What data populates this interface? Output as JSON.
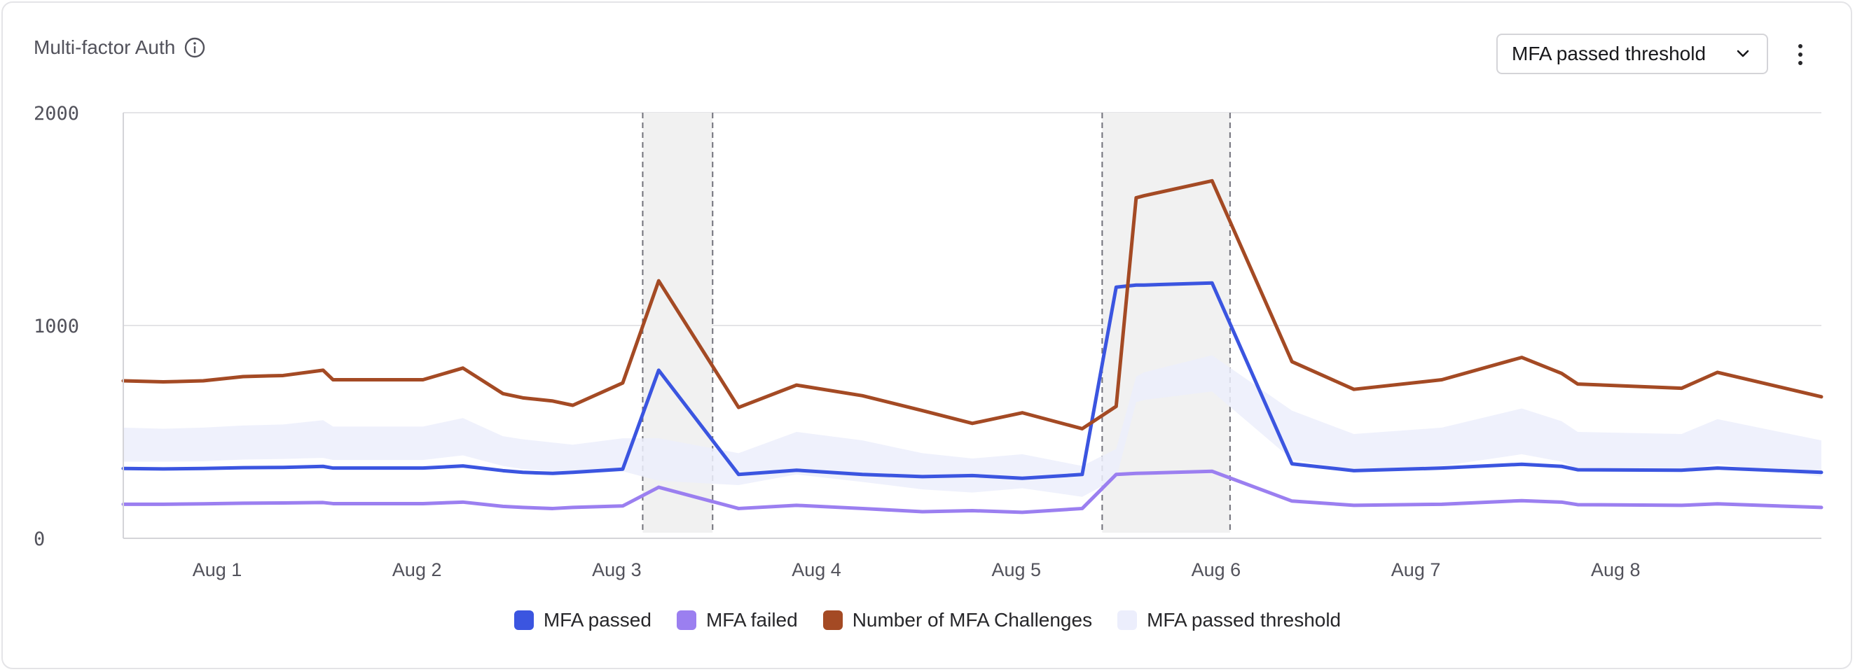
{
  "header": {
    "title": "Multi-factor Auth",
    "info_icon": "info-icon",
    "dropdown_selected": "MFA passed threshold",
    "more_icon": "more-vertical-icon"
  },
  "colors": {
    "passed": "#3b55e0",
    "failed": "#9b7ff0",
    "challenges": "#a44a24",
    "threshold": "#eceefc",
    "highlight": "#f1f1f1",
    "grid": "#e4e4e7"
  },
  "chart_data": {
    "type": "line",
    "xlim": [
      0,
      8.5
    ],
    "ylim": [
      0,
      2000
    ],
    "yticks": [
      "2000",
      "1000",
      "0"
    ],
    "ytick_values": [
      2000,
      1000,
      0
    ],
    "xticks": [
      {
        "label": "Aug 1",
        "x": 0.47
      },
      {
        "label": "Aug 2",
        "x": 1.47
      },
      {
        "label": "Aug 3",
        "x": 2.47
      },
      {
        "label": "Aug 4",
        "x": 3.47
      },
      {
        "label": "Aug 5",
        "x": 4.47
      },
      {
        "label": "Aug 6",
        "x": 5.47
      },
      {
        "label": "Aug 7",
        "x": 6.47
      },
      {
        "label": "Aug 8",
        "x": 7.47
      }
    ],
    "highlights": [
      {
        "x_start": 2.6,
        "x_end": 2.95
      },
      {
        "x_start": 4.9,
        "x_end": 5.54
      }
    ],
    "series": [
      {
        "name": "MFA passed",
        "x": [
          0,
          0.2,
          0.4,
          0.6,
          0.8,
          1.0,
          1.05,
          1.3,
          1.5,
          1.7,
          1.9,
          2.0,
          2.15,
          2.25,
          2.5,
          2.68,
          3.08,
          3.37,
          3.7,
          4.0,
          4.25,
          4.5,
          4.8,
          4.97,
          5.07,
          5.11,
          5.45,
          5.85,
          6.16,
          6.6,
          7.0,
          7.2,
          7.28,
          7.8,
          7.98,
          8.5
        ],
        "y": [
          328,
          326,
          328,
          332,
          333,
          338,
          330,
          330,
          330,
          340,
          318,
          310,
          305,
          310,
          325,
          790,
          300,
          320,
          300,
          290,
          295,
          282,
          300,
          1180,
          1190,
          1190,
          1200,
          350,
          318,
          330,
          348,
          338,
          322,
          320,
          330,
          310
        ]
      },
      {
        "name": "MFA failed",
        "x": [
          0,
          0.2,
          0.4,
          0.6,
          0.8,
          1.0,
          1.05,
          1.3,
          1.5,
          1.7,
          1.9,
          2.0,
          2.15,
          2.25,
          2.5,
          2.68,
          3.08,
          3.37,
          3.7,
          4.0,
          4.25,
          4.5,
          4.8,
          4.97,
          5.07,
          5.11,
          5.45,
          5.85,
          6.16,
          6.6,
          7.0,
          7.2,
          7.28,
          7.8,
          7.98,
          8.5
        ],
        "y": [
          160,
          160,
          162,
          165,
          166,
          168,
          163,
          163,
          163,
          170,
          150,
          145,
          140,
          145,
          152,
          240,
          140,
          155,
          140,
          125,
          130,
          122,
          140,
          300,
          305,
          306,
          315,
          175,
          155,
          160,
          177,
          170,
          158,
          155,
          162,
          145
        ]
      },
      {
        "name": "Number of MFA Challenges",
        "x": [
          0,
          0.2,
          0.4,
          0.6,
          0.8,
          1.0,
          1.05,
          1.3,
          1.5,
          1.7,
          1.9,
          2.0,
          2.15,
          2.25,
          2.5,
          2.68,
          3.08,
          3.37,
          3.7,
          4.0,
          4.25,
          4.5,
          4.8,
          4.97,
          5.07,
          5.11,
          5.45,
          5.85,
          6.16,
          6.6,
          7.0,
          7.2,
          7.28,
          7.8,
          7.98,
          8.5
        ],
        "y": [
          740,
          735,
          740,
          760,
          765,
          790,
          745,
          745,
          745,
          800,
          680,
          660,
          645,
          625,
          730,
          1210,
          615,
          720,
          670,
          600,
          540,
          590,
          515,
          620,
          1600,
          1610,
          1680,
          830,
          700,
          745,
          850,
          775,
          725,
          705,
          780,
          665
        ]
      },
      {
        "name": "MFA passed threshold",
        "type": "band",
        "x": [
          0,
          0.2,
          0.4,
          0.6,
          0.8,
          1.0,
          1.05,
          1.3,
          1.5,
          1.7,
          1.9,
          2.0,
          2.15,
          2.25,
          2.5,
          2.68,
          3.08,
          3.37,
          3.7,
          4.0,
          4.25,
          4.5,
          4.8,
          4.97,
          5.07,
          5.11,
          5.45,
          5.85,
          6.16,
          6.6,
          7.0,
          7.2,
          7.28,
          7.8,
          7.98,
          8.5
        ],
        "low": [
          360,
          360,
          362,
          370,
          373,
          378,
          368,
          368,
          368,
          390,
          340,
          325,
          315,
          300,
          315,
          270,
          250,
          300,
          265,
          230,
          215,
          235,
          195,
          280,
          640,
          650,
          690,
          370,
          320,
          340,
          395,
          360,
          325,
          320,
          350,
          290
        ],
        "high": [
          520,
          515,
          520,
          530,
          535,
          555,
          525,
          525,
          525,
          565,
          480,
          465,
          450,
          440,
          470,
          470,
          400,
          500,
          460,
          400,
          375,
          395,
          340,
          420,
          760,
          780,
          860,
          600,
          490,
          520,
          610,
          550,
          500,
          490,
          560,
          460
        ]
      }
    ]
  }
}
